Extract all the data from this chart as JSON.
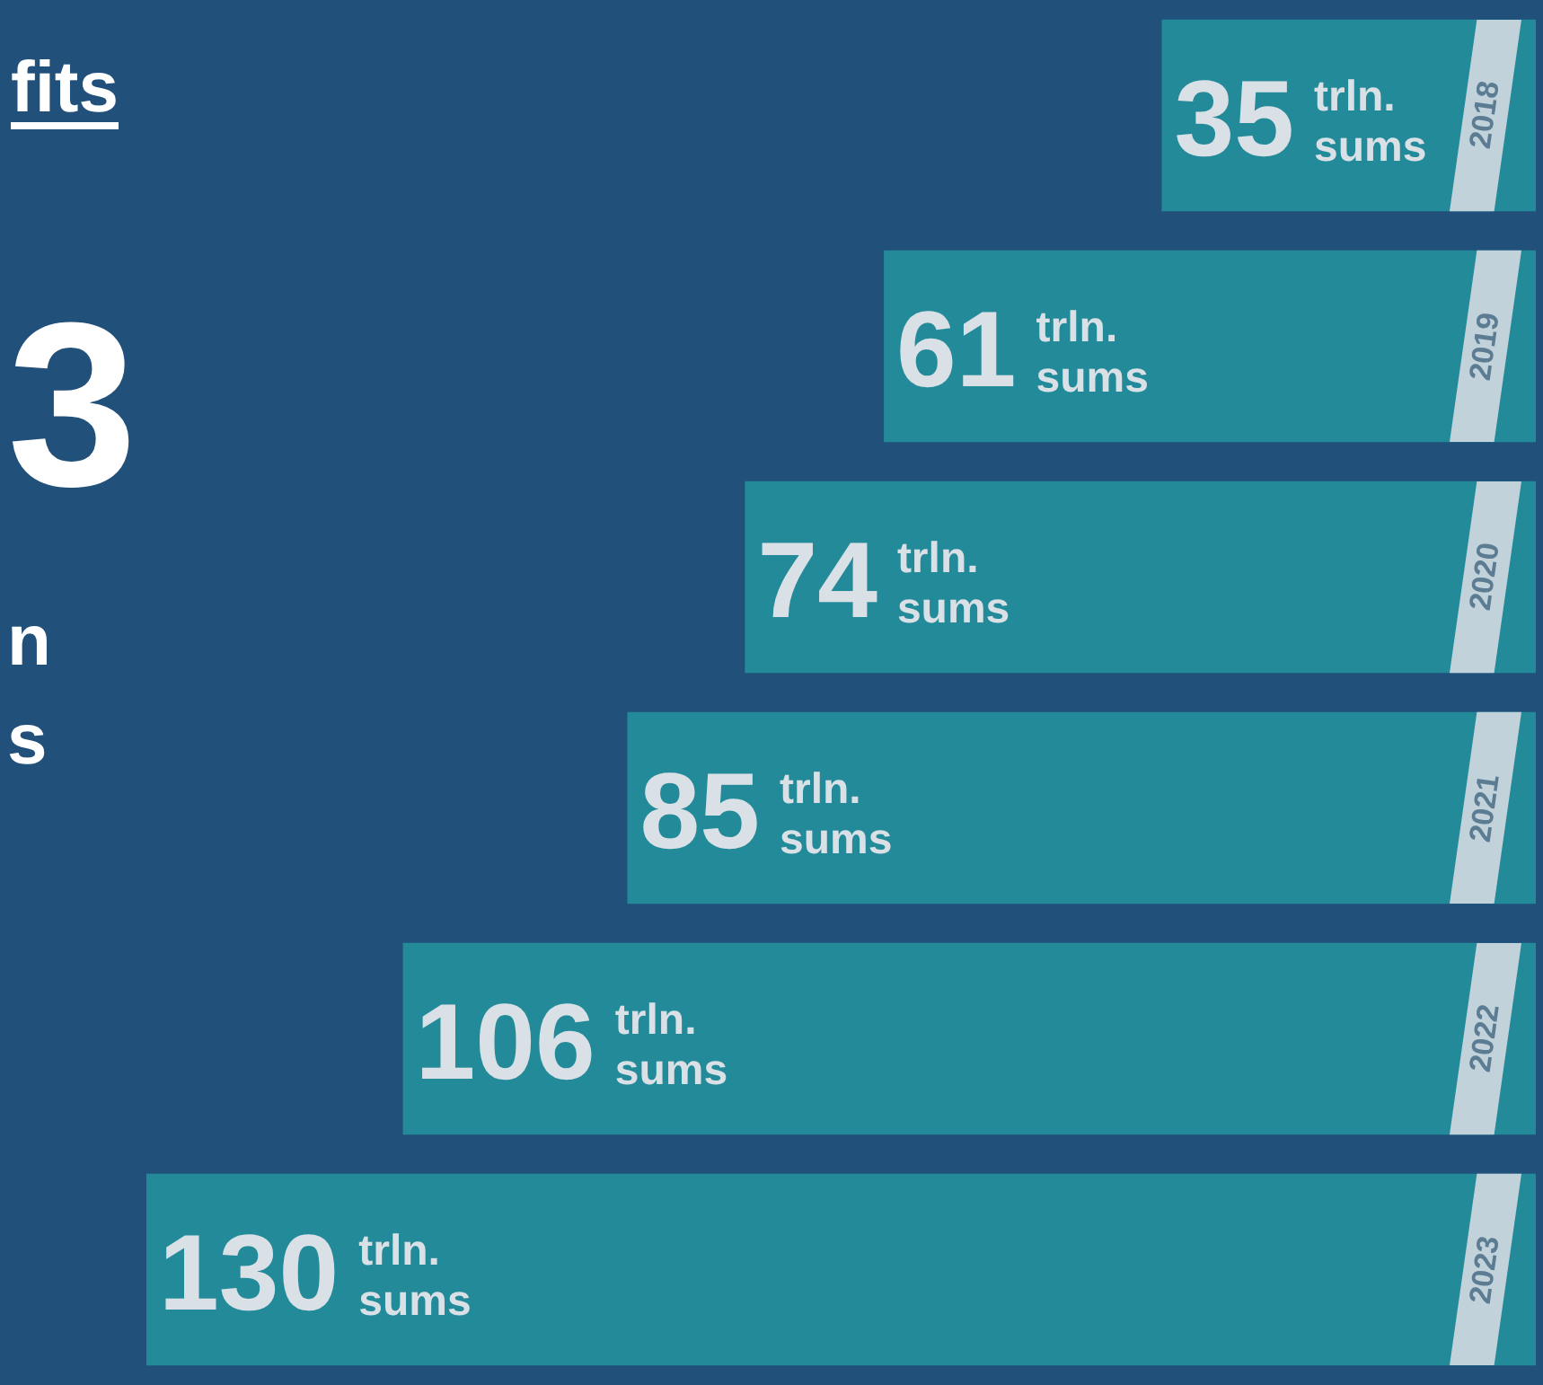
{
  "chart_data": {
    "type": "bar",
    "orientation": "horizontal",
    "title": "fits",
    "categories": [
      "2018",
      "2019",
      "2020",
      "2021",
      "2022",
      "2023"
    ],
    "values": [
      35,
      61,
      74,
      85,
      106,
      130
    ],
    "color": "#238a9a",
    "value_labels": [
      "35 trln. sums",
      "61 trln. sums",
      "74 trln. sums",
      "85 trln. sums",
      "106 trln. sums",
      "130 trln. sums"
    ],
    "tick_labels": "y",
    "annotations": [
      "3",
      "n",
      "s"
    ]
  }
}
